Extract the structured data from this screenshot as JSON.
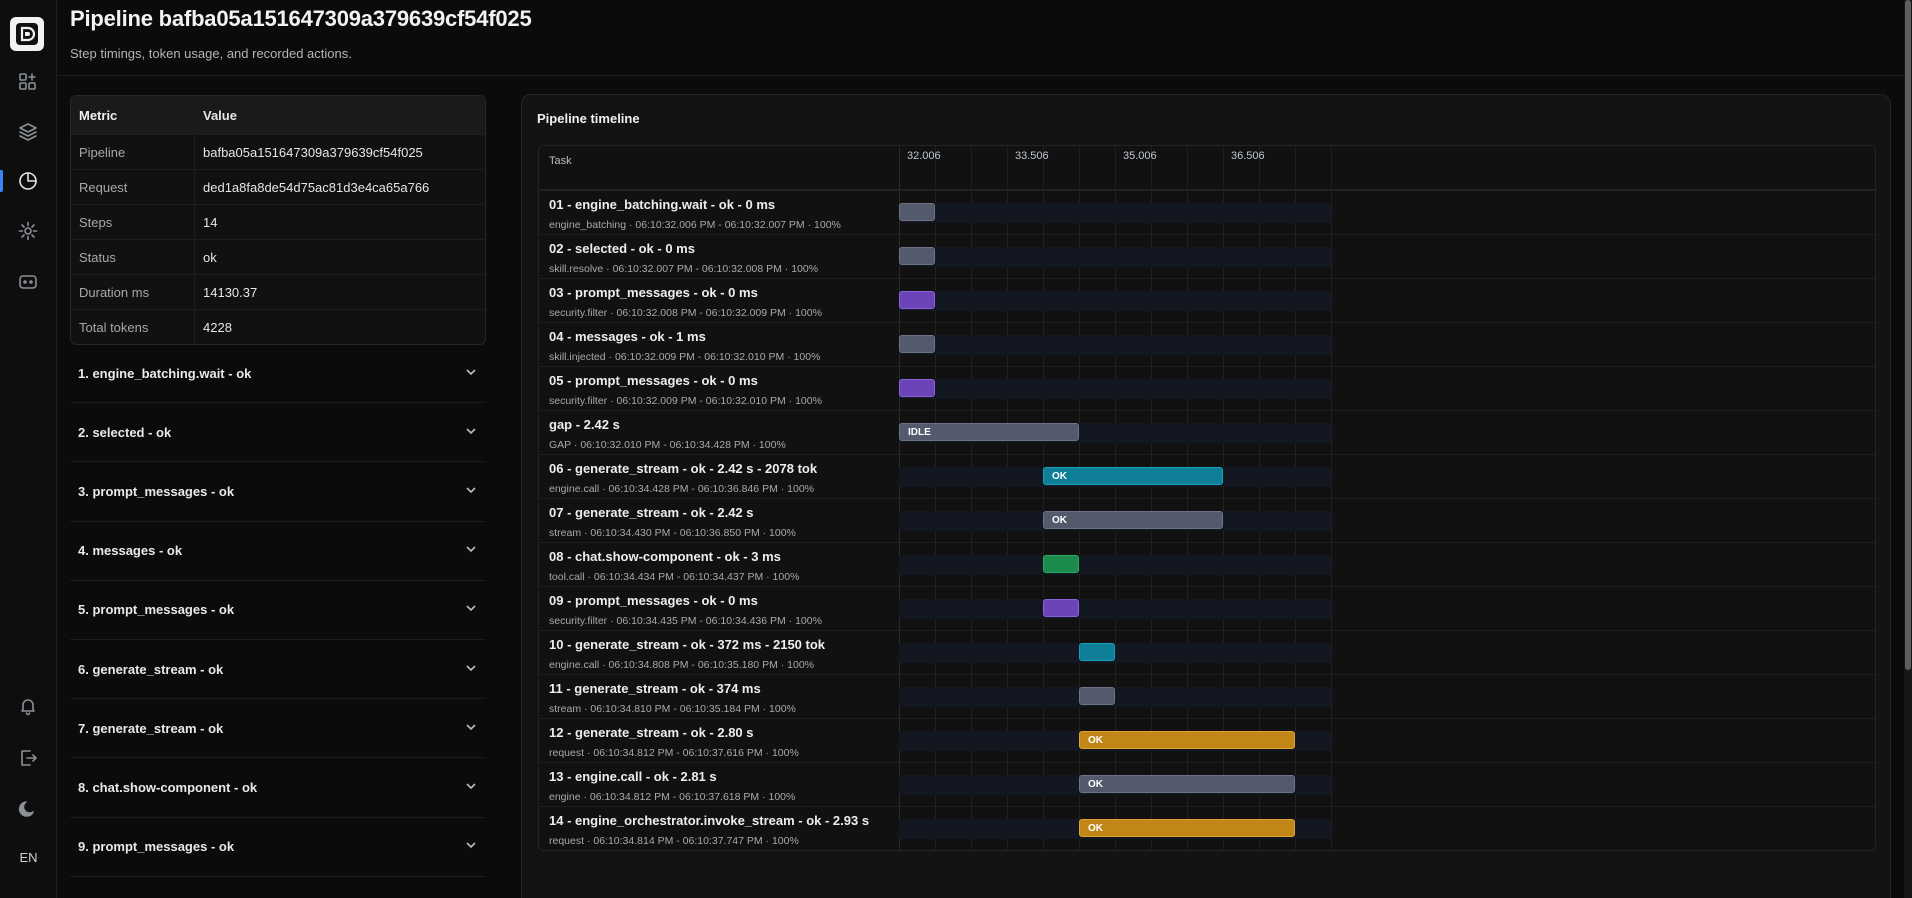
{
  "header": {
    "title": "Pipeline bafba05a151647309a379639cf54f025",
    "subtitle": "Step timings, token usage, and recorded actions."
  },
  "sidebar": {
    "icons": [
      "logo-icon",
      "dashboard-icon",
      "layers-icon",
      "analytics-icon",
      "settings-icon",
      "chat-bot-icon",
      "bell-icon",
      "logout-icon",
      "theme-moon-icon"
    ],
    "language": "EN",
    "active_color": "#3b82f6"
  },
  "metrics": {
    "header": {
      "key": "Metric",
      "value": "Value"
    },
    "rows": [
      {
        "key": "Pipeline",
        "value": "bafba05a151647309a379639cf54f025"
      },
      {
        "key": "Request",
        "value": "ded1a8fa8de54d75ac81d3e4ca65a766"
      },
      {
        "key": "Steps",
        "value": "14"
      },
      {
        "key": "Status",
        "value": "ok"
      },
      {
        "key": "Duration ms",
        "value": "14130.37"
      },
      {
        "key": "Total tokens",
        "value": "4228"
      }
    ]
  },
  "steps": [
    "1. engine_batching.wait - ok",
    "2. selected - ok",
    "3. prompt_messages - ok",
    "4. messages - ok",
    "5. prompt_messages - ok",
    "6. generate_stream - ok",
    "7. generate_stream - ok",
    "8. chat.show-component - ok",
    "9. prompt_messages - ok"
  ],
  "timeline": {
    "title": "Pipeline timeline",
    "task_header": "Task",
    "axis_start": 32.006,
    "axis_end": 38.006,
    "ticks": [
      "32.006",
      "33.506",
      "35.006",
      "36.506"
    ],
    "grid_step": 0.5,
    "colors": {
      "slate": "#525a6b",
      "purple": "#6a44b8",
      "teal": "#0e7f96",
      "green": "#1c8b4c",
      "amber": "#c18617"
    },
    "rows": [
      {
        "name": "01 - engine_batching.wait - ok - 0 ms",
        "meta": "engine_batching · 06:10:32.006 PM - 06:10:32.007 PM · 100%",
        "start": 32.006,
        "end": 32.506,
        "color": "slate",
        "label": ""
      },
      {
        "name": "02 - selected - ok - 0 ms",
        "meta": "skill.resolve · 06:10:32.007 PM - 06:10:32.008 PM · 100%",
        "start": 32.006,
        "end": 32.506,
        "color": "slate",
        "label": ""
      },
      {
        "name": "03 - prompt_messages - ok - 0 ms",
        "meta": "security.filter · 06:10:32.008 PM - 06:10:32.009 PM · 100%",
        "start": 32.006,
        "end": 32.506,
        "color": "purple",
        "label": ""
      },
      {
        "name": "04 - messages - ok - 1 ms",
        "meta": "skill.injected · 06:10:32.009 PM - 06:10:32.010 PM · 100%",
        "start": 32.006,
        "end": 32.506,
        "color": "slate",
        "label": ""
      },
      {
        "name": "05 - prompt_messages - ok - 0 ms",
        "meta": "security.filter · 06:10:32.009 PM - 06:10:32.010 PM · 100%",
        "start": 32.006,
        "end": 32.506,
        "color": "purple",
        "label": ""
      },
      {
        "name": "gap - 2.42 s",
        "meta": "GAP · 06:10:32.010 PM - 06:10:34.428 PM · 100%",
        "start": 32.006,
        "end": 34.506,
        "color": "slate",
        "label": "IDLE"
      },
      {
        "name": "06 - generate_stream - ok - 2.42 s - 2078 tok",
        "meta": "engine.call · 06:10:34.428 PM - 06:10:36.846 PM · 100%",
        "start": 34.006,
        "end": 36.506,
        "color": "teal",
        "label": "OK"
      },
      {
        "name": "07 - generate_stream - ok - 2.42 s",
        "meta": "stream · 06:10:34.430 PM - 06:10:36.850 PM · 100%",
        "start": 34.006,
        "end": 36.506,
        "color": "slate",
        "label": "OK"
      },
      {
        "name": "08 - chat.show-component - ok - 3 ms",
        "meta": "tool.call · 06:10:34.434 PM - 06:10:34.437 PM · 100%",
        "start": 34.006,
        "end": 34.506,
        "color": "green",
        "label": ""
      },
      {
        "name": "09 - prompt_messages - ok - 0 ms",
        "meta": "security.filter · 06:10:34.435 PM - 06:10:34.436 PM · 100%",
        "start": 34.006,
        "end": 34.506,
        "color": "purple",
        "label": ""
      },
      {
        "name": "10 - generate_stream - ok - 372 ms - 2150 tok",
        "meta": "engine.call · 06:10:34.808 PM - 06:10:35.180 PM · 100%",
        "start": 34.506,
        "end": 35.006,
        "color": "teal",
        "label": ""
      },
      {
        "name": "11 - generate_stream - ok - 374 ms",
        "meta": "stream · 06:10:34.810 PM - 06:10:35.184 PM · 100%",
        "start": 34.506,
        "end": 35.006,
        "color": "slate",
        "label": ""
      },
      {
        "name": "12 - generate_stream - ok - 2.80 s",
        "meta": "request · 06:10:34.812 PM - 06:10:37.616 PM · 100%",
        "start": 34.506,
        "end": 37.506,
        "color": "amber",
        "label": "OK"
      },
      {
        "name": "13 - engine.call - ok - 2.81 s",
        "meta": "engine · 06:10:34.812 PM - 06:10:37.618 PM · 100%",
        "start": 34.506,
        "end": 37.506,
        "color": "slate",
        "label": "OK"
      },
      {
        "name": "14 - engine_orchestrator.invoke_stream - ok - 2.93 s",
        "meta": "request · 06:10:34.814 PM - 06:10:37.747 PM · 100%",
        "start": 34.506,
        "end": 37.506,
        "color": "amber",
        "label": "OK"
      }
    ]
  }
}
